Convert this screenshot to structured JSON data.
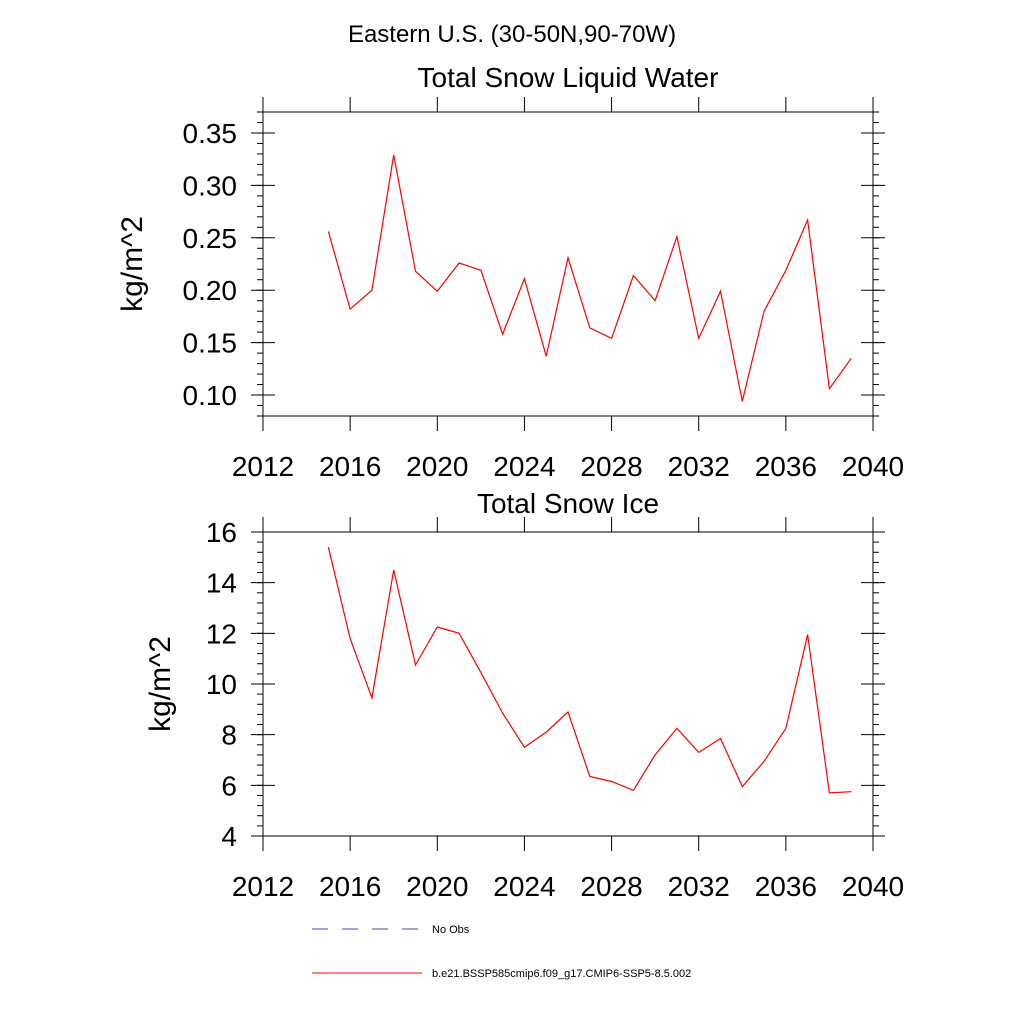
{
  "figure": {
    "title": "Eastern U.S. (30-50N,90-70W)"
  },
  "chart_data": [
    {
      "type": "line",
      "title": "Total Snow Liquid Water",
      "xlabel": "",
      "ylabel": "kg/m^2",
      "xlim": [
        2012,
        2040
      ],
      "ylim": [
        0.08,
        0.37
      ],
      "xticks": [
        "2012",
        "2016",
        "2020",
        "2024",
        "2028",
        "2032",
        "2036",
        "2040"
      ],
      "yticks": [
        "0.10",
        "0.15",
        "0.20",
        "0.25",
        "0.30",
        "0.35"
      ],
      "x": [
        2015,
        2016,
        2017,
        2018,
        2019,
        2020,
        2021,
        2022,
        2023,
        2024,
        2025,
        2026,
        2027,
        2028,
        2029,
        2030,
        2031,
        2032,
        2033,
        2034,
        2035,
        2036,
        2037,
        2038,
        2039
      ],
      "series": [
        {
          "name": "b.e21.BSSP585cmip6.f09_g17.CMIP6-SSP5-8.5.002",
          "color": "#ff0000",
          "values": [
            0.256,
            0.182,
            0.2,
            0.329,
            0.218,
            0.199,
            0.226,
            0.219,
            0.158,
            0.211,
            0.137,
            0.231,
            0.164,
            0.154,
            0.214,
            0.19,
            0.251,
            0.154,
            0.199,
            0.094,
            0.18,
            0.219,
            0.267,
            0.106,
            0.135
          ]
        }
      ],
      "grid": false
    },
    {
      "type": "line",
      "title": "Total Snow Ice",
      "xlabel": "",
      "ylabel": "kg/m^2",
      "xlim": [
        2012,
        2040
      ],
      "ylim": [
        4,
        16
      ],
      "xticks": [
        "2012",
        "2016",
        "2020",
        "2024",
        "2028",
        "2032",
        "2036",
        "2040"
      ],
      "yticks": [
        "4",
        "6",
        "8",
        "10",
        "12",
        "14",
        "16"
      ],
      "x": [
        2015,
        2016,
        2017,
        2018,
        2019,
        2020,
        2021,
        2022,
        2023,
        2024,
        2025,
        2026,
        2027,
        2028,
        2029,
        2030,
        2031,
        2032,
        2033,
        2034,
        2035,
        2036,
        2037,
        2038,
        2039
      ],
      "series": [
        {
          "name": "b.e21.BSSP585cmip6.f09_g17.CMIP6-SSP5-8.5.002",
          "color": "#ff0000",
          "values": [
            15.4,
            11.8,
            9.45,
            14.5,
            10.75,
            12.25,
            12.0,
            10.45,
            8.85,
            7.5,
            8.1,
            8.9,
            6.35,
            6.15,
            5.8,
            7.2,
            8.25,
            7.3,
            7.85,
            5.95,
            6.95,
            8.25,
            11.95,
            5.7,
            5.75
          ]
        }
      ],
      "grid": false
    }
  ],
  "legend": {
    "placement": "bottom",
    "items": [
      {
        "label": "No Obs",
        "color": "#4a4a9a",
        "style": "dashed"
      },
      {
        "label": "b.e21.BSSP585cmip6.f09_g17.CMIP6-SSP5-8.5.002",
        "color": "#ff0000",
        "style": "solid"
      }
    ]
  }
}
